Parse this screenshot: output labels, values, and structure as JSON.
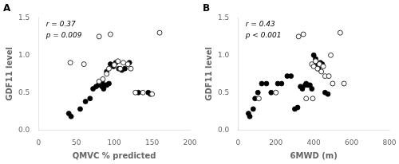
{
  "chart_data": [
    {
      "type": "scatter",
      "title": "A",
      "annotations": [
        "r = 0.37",
        "p = 0.009"
      ],
      "xlabel": "QMVC % predicted",
      "ylabel": "GDF11 level",
      "xlim": [
        0,
        200
      ],
      "ylim": [
        0,
        1.5
      ],
      "xticks": [
        0,
        50,
        100,
        150,
        200
      ],
      "yticks": [
        {
          "value": 0,
          "label": "0.0"
        },
        0.5,
        {
          "value": 1.0,
          "label": "1.0"
        },
        1.5
      ],
      "grid": false,
      "series": [
        {
          "color": "#000000",
          "marker": "filled circle",
          "x": [
            40,
            43,
            55,
            62,
            68,
            72,
            76,
            79,
            82,
            84,
            84,
            86,
            88,
            90,
            90,
            93,
            95,
            99,
            102,
            106,
            110,
            114,
            120,
            132,
            145,
            148
          ],
          "values": [
            0.22,
            0.18,
            0.28,
            0.38,
            0.42,
            0.55,
            0.58,
            0.6,
            0.62,
            0.58,
            0.65,
            0.55,
            0.6,
            0.6,
            0.78,
            0.62,
            0.88,
            0.85,
            0.9,
            0.82,
            0.8,
            0.82,
            0.9,
            0.5,
            0.5,
            0.48
          ]
        },
        {
          "color": "#333333",
          "marker": "open circle",
          "x": [
            42,
            60,
            80,
            95,
            80,
            85,
            90,
            93,
            100,
            105,
            108,
            112,
            118,
            122,
            128,
            138,
            150,
            160
          ],
          "values": [
            0.9,
            0.88,
            1.25,
            1.28,
            0.65,
            0.68,
            0.75,
            0.82,
            0.87,
            0.92,
            0.82,
            0.9,
            0.88,
            0.82,
            0.5,
            0.5,
            0.48,
            1.3
          ]
        }
      ]
    },
    {
      "type": "scatter",
      "title": "B",
      "annotations": [
        "r = 0.43",
        "p < 0.001"
      ],
      "xlabel": "6MWD (m)",
      "ylabel": "GDF11 level",
      "xlim": [
        0,
        800
      ],
      "ylim": [
        0,
        1.5
      ],
      "xticks": [
        0,
        200,
        400,
        600,
        800
      ],
      "yticks": [
        {
          "value": 0,
          "label": "0.0"
        },
        0.5,
        {
          "value": 1.0,
          "label": "1.0"
        },
        1.5
      ],
      "grid": false,
      "series": [
        {
          "color": "#000000",
          "marker": "filled circle",
          "x": [
            55,
            62,
            80,
            90,
            105,
            125,
            150,
            175,
            210,
            230,
            260,
            280,
            300,
            315,
            330,
            340,
            355,
            360,
            370,
            380,
            390,
            400,
            410,
            415,
            425,
            435,
            445,
            460,
            475
          ],
          "values": [
            0.22,
            0.18,
            0.28,
            0.42,
            0.5,
            0.62,
            0.62,
            0.5,
            0.62,
            0.62,
            0.72,
            0.72,
            0.28,
            0.3,
            0.58,
            0.55,
            0.6,
            0.62,
            0.6,
            0.6,
            0.55,
            1.0,
            0.95,
            0.88,
            0.82,
            0.9,
            0.88,
            0.5,
            0.48
          ]
        },
        {
          "color": "#333333",
          "marker": "open circle",
          "x": [
            110,
            200,
            320,
            345,
            360,
            395,
            390,
            400,
            410,
            420,
            430,
            440,
            450,
            460,
            480,
            490,
            500,
            540,
            560
          ],
          "values": [
            0.42,
            0.5,
            1.25,
            1.28,
            0.42,
            0.42,
            0.88,
            0.85,
            0.92,
            0.82,
            0.88,
            0.78,
            0.85,
            0.72,
            0.72,
            1.0,
            0.62,
            1.3,
            0.62
          ]
        }
      ]
    }
  ]
}
